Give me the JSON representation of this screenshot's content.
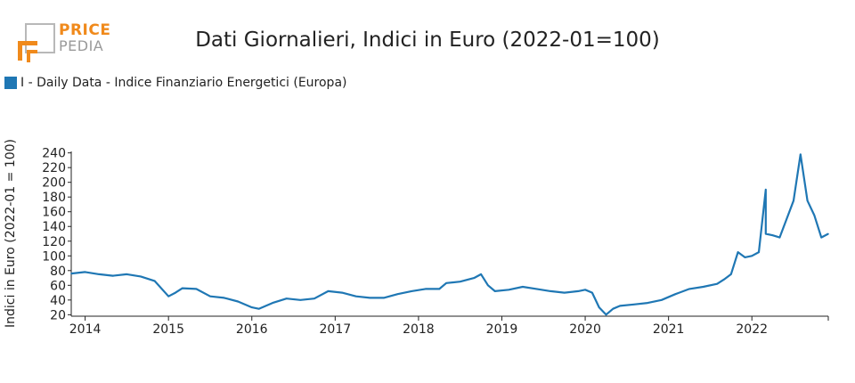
{
  "title": "Dati Giornalieri, Indici in Euro (2022-01=100)",
  "logo": {
    "word1": "PRICE",
    "word2": "PEDIA",
    "colors": {
      "accent": "#f08a1c",
      "gray": "#9a9a9a"
    }
  },
  "legend": {
    "label": "I - Daily Data - Indice Finanziario Energetici (Europa)",
    "color": "#1f77b4"
  },
  "chart_data": {
    "type": "line",
    "title": "Dati Giornalieri, Indici in Euro (2022-01=100)",
    "xlabel": "",
    "ylabel": "Indici in Euro (2022-01 = 100)",
    "x_ticks": [
      "2014",
      "2015",
      "2016",
      "2017",
      "2018",
      "2019",
      "2020",
      "2021",
      "2022"
    ],
    "y_ticks": [
      20,
      40,
      60,
      80,
      100,
      120,
      140,
      160,
      180,
      200,
      220,
      240
    ],
    "xlim": [
      "2013-11",
      "2022-12"
    ],
    "ylim": [
      18,
      242
    ],
    "grid": false,
    "legend_position": "top-left",
    "series": [
      {
        "name": "I - Daily Data - Indice Finanziario Energetici (Europa)",
        "color": "#1f77b4",
        "x": [
          "2013-11",
          "2014-01",
          "2014-03",
          "2014-05",
          "2014-07",
          "2014-09",
          "2014-11",
          "2015-01",
          "2015-02",
          "2015-03",
          "2015-05",
          "2015-07",
          "2015-09",
          "2015-11",
          "2016-01",
          "2016-02",
          "2016-04",
          "2016-06",
          "2016-08",
          "2016-10",
          "2016-12",
          "2017-02",
          "2017-04",
          "2017-06",
          "2017-08",
          "2017-10",
          "2017-12",
          "2018-02",
          "2018-04",
          "2018-05",
          "2018-07",
          "2018-09",
          "2018-10",
          "2018-11",
          "2018-12",
          "2019-02",
          "2019-04",
          "2019-06",
          "2019-08",
          "2019-10",
          "2019-12",
          "2020-01",
          "2020-02",
          "2020-03",
          "2020-04",
          "2020-05",
          "2020-06",
          "2020-08",
          "2020-10",
          "2020-12",
          "2021-02",
          "2021-04",
          "2021-06",
          "2021-08",
          "2021-09",
          "2021-10",
          "2021-11",
          "2021-12",
          "2022-01",
          "2022-02",
          "2022-03",
          "2022-03",
          "2022-04",
          "2022-05",
          "2022-06",
          "2022-07",
          "2022-08",
          "2022-09",
          "2022-10",
          "2022-11",
          "2022-12"
        ],
        "values": [
          76,
          78,
          75,
          73,
          75,
          72,
          66,
          45,
          50,
          56,
          55,
          45,
          43,
          38,
          30,
          28,
          36,
          42,
          40,
          42,
          52,
          50,
          45,
          43,
          43,
          48,
          52,
          55,
          55,
          63,
          65,
          70,
          75,
          60,
          52,
          54,
          58,
          55,
          52,
          50,
          52,
          54,
          50,
          30,
          20,
          28,
          32,
          34,
          36,
          40,
          48,
          55,
          58,
          62,
          68,
          75,
          105,
          98,
          100,
          105,
          190,
          130,
          128,
          125,
          150,
          175,
          238,
          175,
          155,
          125,
          130
        ]
      }
    ]
  }
}
